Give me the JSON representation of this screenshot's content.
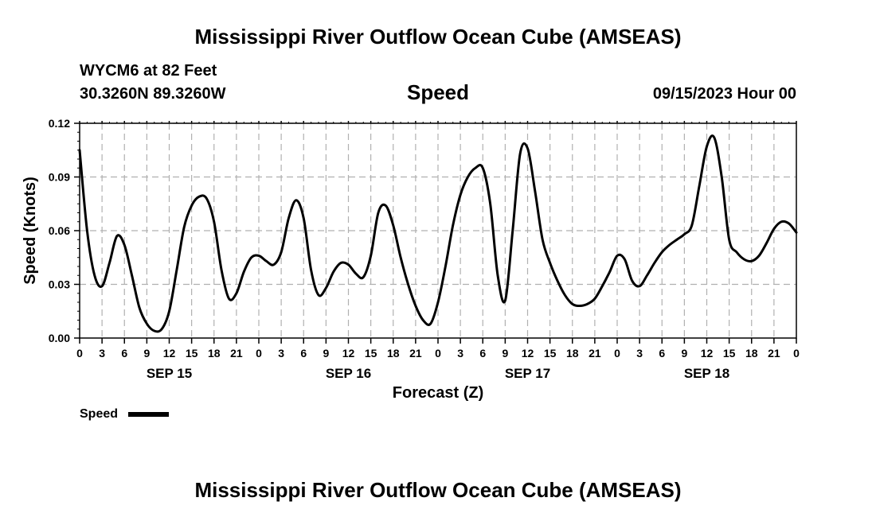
{
  "header": {
    "title": "Mississippi River Outflow Ocean Cube (AMSEAS)",
    "station": "WYCM6 at 82 Feet",
    "coords": "30.3260N  89.3260W",
    "timestamp": "09/15/2023 Hour 00"
  },
  "footer": {
    "title": "Mississippi River Outflow Ocean Cube (AMSEAS)"
  },
  "chart_data": {
    "type": "line",
    "title": "Speed",
    "xlabel": "Forecast (Z)",
    "ylabel": "Speed (Knots)",
    "ylim": [
      0,
      0.12
    ],
    "y_ticks": [
      "0.00",
      "0.03",
      "0.06",
      "0.09",
      "0.12"
    ],
    "xlim": [
      0,
      96
    ],
    "x_tick_labels": [
      "0",
      "3",
      "6",
      "9",
      "12",
      "15",
      "18",
      "21",
      "0",
      "3",
      "6",
      "9",
      "12",
      "15",
      "18",
      "21",
      "0",
      "3",
      "6",
      "9",
      "12",
      "15",
      "18",
      "21",
      "0",
      "3",
      "6",
      "9",
      "12",
      "15",
      "18",
      "21",
      "0"
    ],
    "date_labels": [
      {
        "label": "SEP 15",
        "hour": 12
      },
      {
        "label": "SEP 16",
        "hour": 36
      },
      {
        "label": "SEP 17",
        "hour": 60
      },
      {
        "label": "SEP 18",
        "hour": 84
      }
    ],
    "grid": true,
    "legend": "bottom-left",
    "series": [
      {
        "name": "Speed",
        "color": "#000000",
        "x": [
          0,
          1,
          2,
          3,
          4,
          5,
          6,
          7,
          8,
          9,
          10,
          11,
          12,
          13,
          14,
          15,
          16,
          17,
          18,
          19,
          20,
          21,
          22,
          23,
          24,
          25,
          26,
          27,
          28,
          29,
          30,
          31,
          32,
          33,
          34,
          35,
          36,
          37,
          38,
          39,
          40,
          41,
          42,
          43,
          44,
          45,
          46,
          47,
          48,
          49,
          50,
          51,
          52,
          53,
          54,
          55,
          56,
          57,
          58,
          59,
          60,
          61,
          62,
          63,
          64,
          65,
          66,
          67,
          68,
          69,
          70,
          71,
          72,
          73,
          74,
          75,
          76,
          77,
          78,
          79,
          80,
          81,
          82,
          83,
          84,
          85,
          86,
          87,
          88,
          89,
          90,
          91,
          92,
          93,
          94,
          95,
          96
        ],
        "values": [
          0.105,
          0.06,
          0.035,
          0.029,
          0.042,
          0.057,
          0.052,
          0.035,
          0.017,
          0.008,
          0.004,
          0.005,
          0.015,
          0.038,
          0.062,
          0.074,
          0.079,
          0.078,
          0.065,
          0.038,
          0.022,
          0.025,
          0.037,
          0.045,
          0.046,
          0.043,
          0.041,
          0.048,
          0.067,
          0.077,
          0.067,
          0.038,
          0.024,
          0.028,
          0.037,
          0.042,
          0.041,
          0.036,
          0.034,
          0.046,
          0.07,
          0.074,
          0.063,
          0.045,
          0.03,
          0.018,
          0.01,
          0.008,
          0.02,
          0.04,
          0.063,
          0.08,
          0.09,
          0.095,
          0.095,
          0.075,
          0.035,
          0.021,
          0.06,
          0.103,
          0.106,
          0.082,
          0.055,
          0.042,
          0.032,
          0.024,
          0.019,
          0.018,
          0.019,
          0.022,
          0.029,
          0.037,
          0.046,
          0.044,
          0.032,
          0.029,
          0.035,
          0.042,
          0.048,
          0.052,
          0.055,
          0.058,
          0.063,
          0.085,
          0.107,
          0.112,
          0.09,
          0.055,
          0.048,
          0.044,
          0.043,
          0.046,
          0.053,
          0.061,
          0.065,
          0.064,
          0.059
        ]
      }
    ]
  }
}
